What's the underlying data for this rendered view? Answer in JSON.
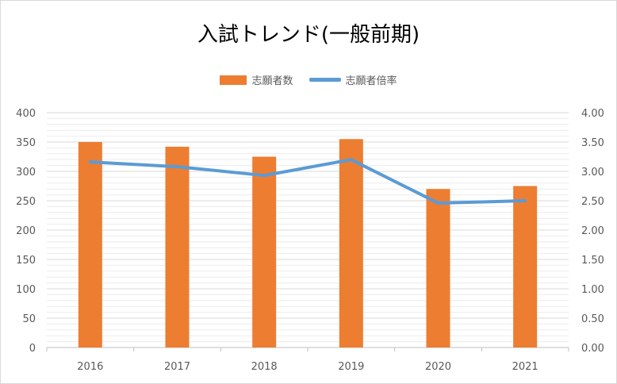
{
  "chart_data": {
    "type": "bar",
    "title": "入試トレンド(一般前期)",
    "categories": [
      "2016",
      "2017",
      "2018",
      "2019",
      "2020",
      "2021"
    ],
    "series": [
      {
        "name": "志願者数",
        "type": "bar",
        "axis": "left",
        "color": "#ed7d31",
        "values": [
          350,
          342,
          325,
          355,
          270,
          275
        ]
      },
      {
        "name": "志願者倍率",
        "type": "line",
        "axis": "right",
        "color": "#5b9bd5",
        "values": [
          3.16,
          3.08,
          2.93,
          3.2,
          2.46,
          2.5
        ]
      }
    ],
    "ylim": [
      0,
      400
    ],
    "y_ticks": [
      "0",
      "50",
      "100",
      "150",
      "200",
      "250",
      "300",
      "350",
      "400"
    ],
    "y2lim": [
      0,
      4
    ],
    "y2_ticks": [
      "0.00",
      "0.50",
      "1.00",
      "1.50",
      "2.00",
      "2.50",
      "3.00",
      "3.50",
      "4.00"
    ],
    "grid": true,
    "legend_position": "top"
  }
}
